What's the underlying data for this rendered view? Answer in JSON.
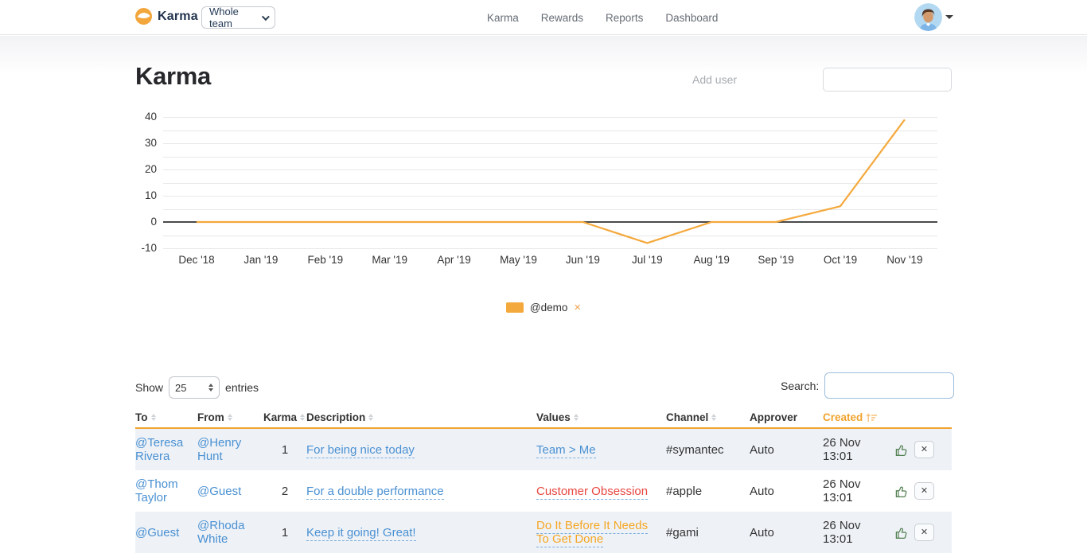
{
  "navbar": {
    "brand": "Karma",
    "team_selector_value": "Whole team",
    "links": [
      {
        "label": "Karma"
      },
      {
        "label": "Rewards"
      },
      {
        "label": "Reports"
      },
      {
        "label": "Dashboard"
      }
    ]
  },
  "header": {
    "title": "Karma",
    "add_user_label": "Add user",
    "add_user_value": ""
  },
  "chart_data": {
    "type": "line",
    "x": [
      "Dec '18",
      "Jan '19",
      "Feb '19",
      "Mar '19",
      "Apr '19",
      "May '19",
      "Jun '19",
      "Jul '19",
      "Aug '19",
      "Sep '19",
      "Oct '19",
      "Nov '19"
    ],
    "series": [
      {
        "name": "@demo",
        "color": "#f4a93d",
        "values": [
          0,
          0,
          0,
          0,
          0,
          0,
          0,
          -8,
          0,
          0,
          6,
          39
        ]
      }
    ],
    "ylim": [
      -10,
      40
    ],
    "yticks": [
      40,
      30,
      20,
      10,
      0,
      -10
    ],
    "grid": true,
    "grid_step": 5,
    "legend_position": "bottom",
    "legend_remove_label": "×"
  },
  "table_controls": {
    "show_label": "Show",
    "page_size_value": "25",
    "entries_label": "entries",
    "search_label": "Search:",
    "search_value": ""
  },
  "table": {
    "columns": [
      {
        "label": "To",
        "sortable": true
      },
      {
        "label": "From",
        "sortable": true
      },
      {
        "label": "Karma",
        "sortable": true
      },
      {
        "label": "Description",
        "sortable": true
      },
      {
        "label": "Values",
        "sortable": true
      },
      {
        "label": "Channel",
        "sortable": true
      },
      {
        "label": "Approver",
        "sortable": false
      },
      {
        "label": "Created",
        "sortable": true,
        "sorted": "desc"
      }
    ],
    "rows": [
      {
        "to": "@Teresa Rivera",
        "from": "@Henry Hunt",
        "karma": "1",
        "description": "For being nice today",
        "values": "Team > Me",
        "values_color": "#4a90d2",
        "channel": "#symantec",
        "approver": "Auto",
        "created": "26 Nov 13:01"
      },
      {
        "to": "@Thom Taylor",
        "from": "@Guest",
        "karma": "2",
        "description": "For a double performance",
        "values": "Customer Obsession",
        "values_color": "#e8463f",
        "channel": "#apple",
        "approver": "Auto",
        "created": "26 Nov 13:01"
      },
      {
        "to": "@Guest",
        "from": "@Rhoda White",
        "karma": "1",
        "description": "Keep it going! Great!",
        "values": "Do It Before It Needs To Get Done",
        "values_color": "#f5a623",
        "channel": "#gami",
        "approver": "Auto",
        "created": "26 Nov 13:01"
      }
    ]
  },
  "icons": {
    "row_actions": [
      "thumbs-up",
      "remove"
    ],
    "legend_remove": "close",
    "sort": "up-down-arrows"
  },
  "colors": {
    "accent_orange": "#f0a32f",
    "series_orange": "#f4a93d",
    "link_blue": "#4a90d2",
    "danger_red": "#e8463f",
    "value_orange": "#f5a623",
    "thumb_green": "#4e7d4e",
    "row_stripe": "#eef2f7",
    "brand_navy": "#22344e"
  }
}
